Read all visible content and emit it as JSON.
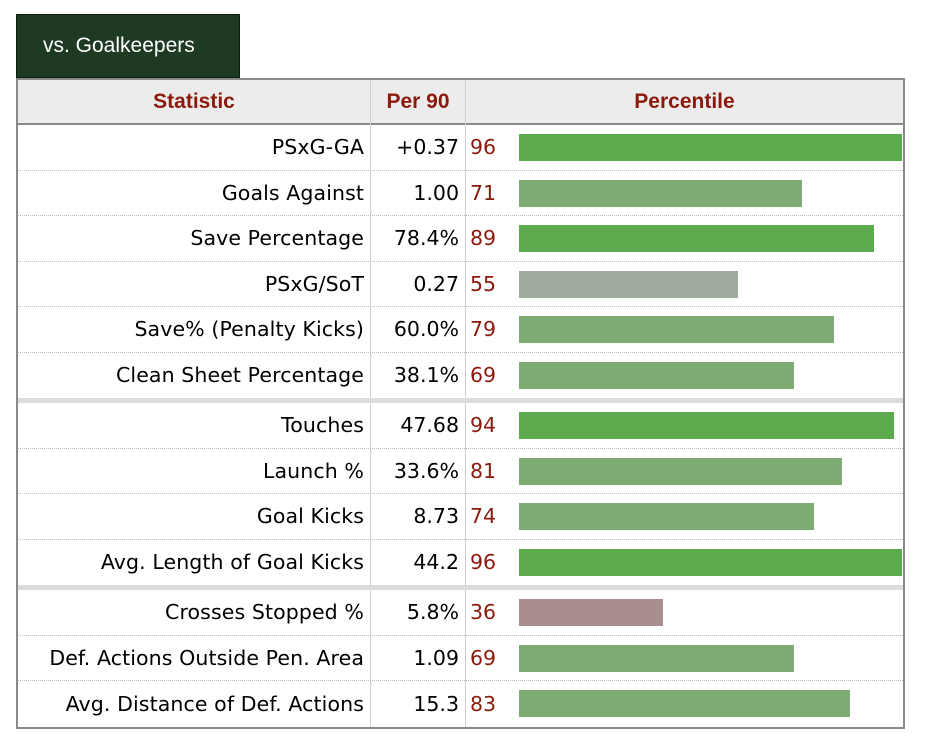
{
  "tab": {
    "label": "vs. Goalkeepers"
  },
  "header": {
    "statistic": "Statistic",
    "per90": "Per 90",
    "percentile": "Percentile"
  },
  "colors": {
    "header_text": "#8b1a0c",
    "percentile_text": "#8b1a0c",
    "tab_bg": "#1e3a22",
    "bar_high": "#5bab4e",
    "bar_mid": "#7dab74",
    "bar_neutral": "#a0ad9e",
    "bar_low": "#a88e8e"
  },
  "groups": [
    {
      "rows": [
        {
          "stat": "PSxG-GA",
          "per90": "+0.37",
          "percentile": 96
        },
        {
          "stat": "Goals Against",
          "per90": "1.00",
          "percentile": 71
        },
        {
          "stat": "Save Percentage",
          "per90": "78.4%",
          "percentile": 89
        },
        {
          "stat": "PSxG/SoT",
          "per90": "0.27",
          "percentile": 55
        },
        {
          "stat": "Save% (Penalty Kicks)",
          "per90": "60.0%",
          "percentile": 79
        },
        {
          "stat": "Clean Sheet Percentage",
          "per90": "38.1%",
          "percentile": 69
        }
      ]
    },
    {
      "rows": [
        {
          "stat": "Touches",
          "per90": "47.68",
          "percentile": 94
        },
        {
          "stat": "Launch %",
          "per90": "33.6%",
          "percentile": 81
        },
        {
          "stat": "Goal Kicks",
          "per90": "8.73",
          "percentile": 74
        },
        {
          "stat": "Avg. Length of Goal Kicks",
          "per90": "44.2",
          "percentile": 96
        }
      ]
    },
    {
      "rows": [
        {
          "stat": "Crosses Stopped %",
          "per90": "5.8%",
          "percentile": 36
        },
        {
          "stat": "Def. Actions Outside Pen. Area",
          "per90": "1.09",
          "percentile": 69
        },
        {
          "stat": "Avg. Distance of Def. Actions",
          "per90": "15.3",
          "percentile": 83
        }
      ]
    }
  ]
}
